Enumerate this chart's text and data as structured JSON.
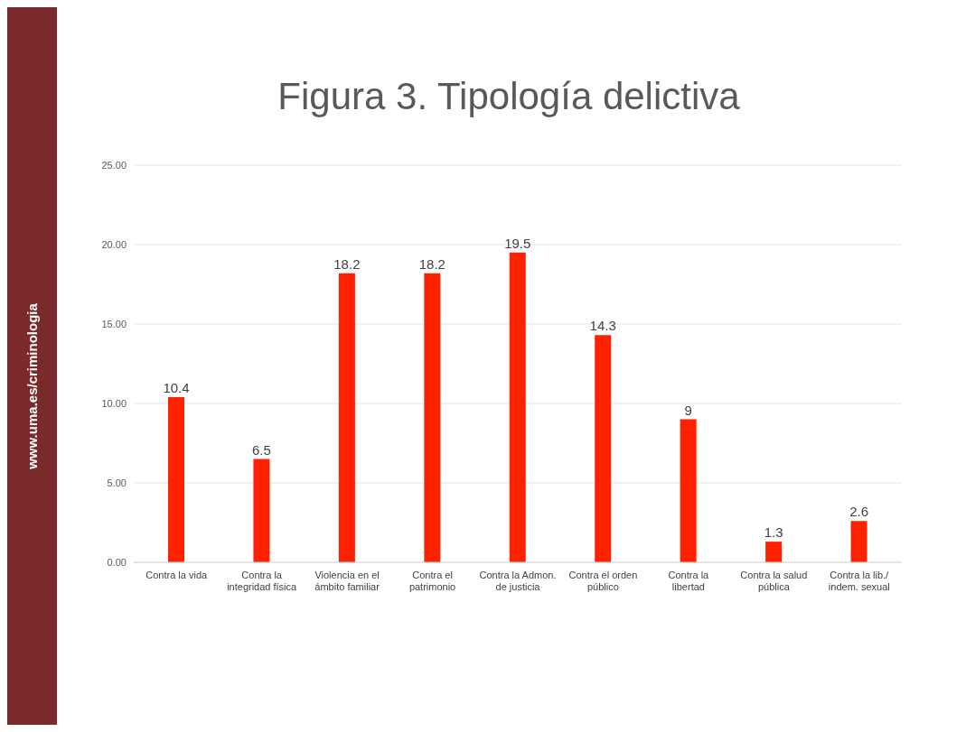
{
  "chart_data": {
    "type": "bar",
    "title": "Figura 3. Tipología delictiva",
    "annotations": [
      "www.uma.es/criminologia"
    ],
    "categories": [
      "Contra la vida",
      "Contra la integridad física",
      "Violencia en el ámbito familiar",
      "Contra el patrimonio",
      "Contra la Admon. de justicia",
      "Contra el orden público",
      "Contra la libertad",
      "Contra la salud pública",
      "Contra la lib./ indem. sexual"
    ],
    "values": [
      10.4,
      6.5,
      18.2,
      18.2,
      19.5,
      14.3,
      9,
      1.3,
      2.6
    ],
    "color": "#ff2200",
    "ylim": [
      0,
      25
    ],
    "yticks": [
      {
        "value": 0,
        "label": "0.00"
      },
      {
        "value": 5,
        "label": "5.00"
      },
      {
        "value": 10,
        "label": "10.00"
      },
      {
        "value": 15,
        "label": "15.00"
      },
      {
        "value": 20,
        "label": "20.00"
      },
      {
        "value": 25,
        "label": "25.00"
      }
    ],
    "grid": "y",
    "data_labels": true
  }
}
